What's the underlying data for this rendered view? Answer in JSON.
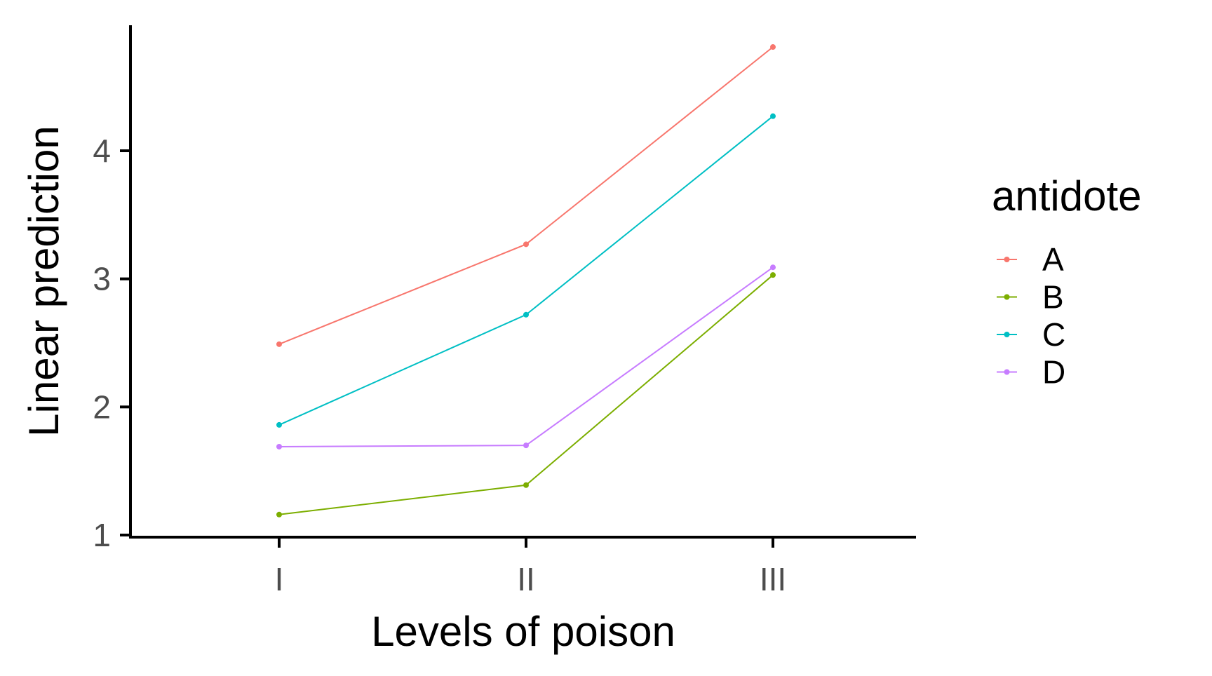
{
  "chart_data": {
    "type": "line",
    "xlabel": "Levels of poison",
    "ylabel": "Linear prediction",
    "categories": [
      "I",
      "II",
      "III"
    ],
    "yticks": [
      1,
      2,
      3,
      4
    ],
    "ylim": [
      0.95,
      4.9
    ],
    "grid": false,
    "legend": {
      "title": "antidote",
      "placement": "right"
    },
    "series": [
      {
        "name": "A",
        "color": "#F8766D",
        "values": [
          2.49,
          3.27,
          4.81
        ]
      },
      {
        "name": "B",
        "color": "#7CAE00",
        "values": [
          1.16,
          1.39,
          3.03
        ]
      },
      {
        "name": "C",
        "color": "#00BFC4",
        "values": [
          1.86,
          2.72,
          4.27
        ]
      },
      {
        "name": "D",
        "color": "#C77CFF",
        "values": [
          1.69,
          1.7,
          3.09
        ]
      }
    ]
  }
}
